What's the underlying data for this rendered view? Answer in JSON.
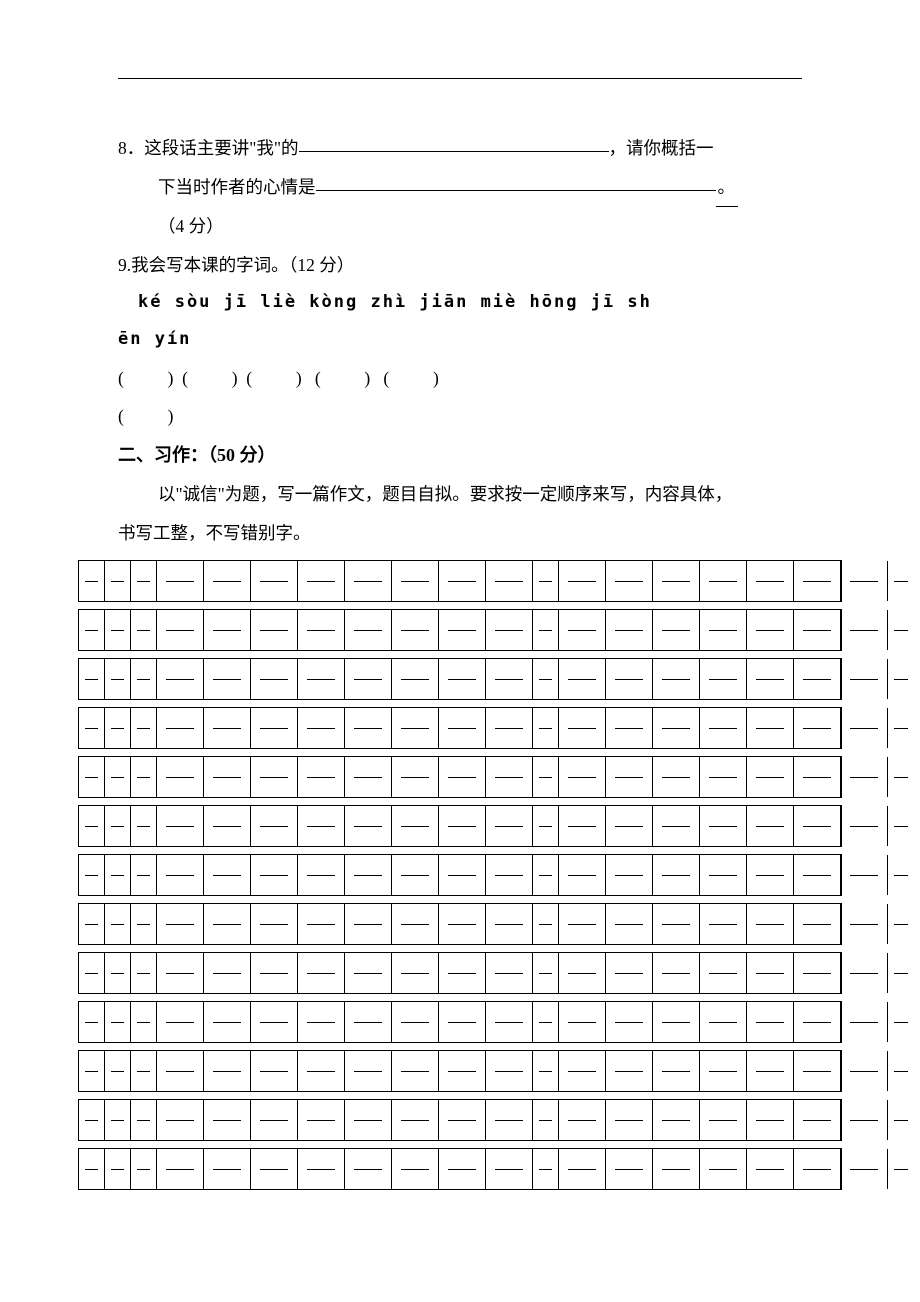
{
  "q8": {
    "prefix": "8．这段话主要讲\"我\"的",
    "blank1_width": 310,
    "mid": "，请你概括一",
    "line2_prefix": "下当时作者的心情是",
    "blank2_width": 400,
    "period": "。",
    "points": "（4 分）"
  },
  "q9": {
    "prefix": "9.我会写本课的字词。（12 分）",
    "pinyin_line1": "ké sòu     jī  liè     kòng zhì      jiān miè      hōng jī     sh",
    "pinyin_line2": "ēn yín",
    "parens_line1": "(          )  (          )  (          )   (          )   (          )",
    "parens_line2": "(          )"
  },
  "section2": {
    "title": "二、习作：（50 分）",
    "prompt_line1": "以\"诚信\"为题，写一篇作文，题目自拟。要求按一定顺序来写，内容具体，",
    "prompt_line2": "书写工整，不写错别字。"
  },
  "grid": {
    "rows": 13,
    "pattern": [
      "w1",
      "w1",
      "w1",
      "w2",
      "w2",
      "w2",
      "w2",
      "w2",
      "w2",
      "w2",
      "w2",
      "w1",
      "w2",
      "w2",
      "w2",
      "w2",
      "w2",
      "w2",
      "w2",
      "w1"
    ]
  }
}
